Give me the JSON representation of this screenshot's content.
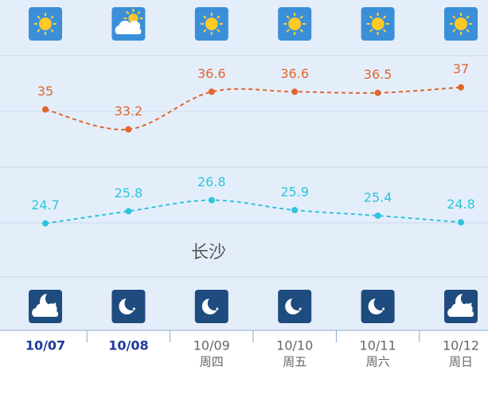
{
  "chart_data": {
    "type": "line",
    "annotation": "长沙",
    "categories": [
      "10/07",
      "10/08",
      "10/09",
      "10/10",
      "10/11",
      "10/12"
    ],
    "weekdays": [
      null,
      null,
      "周四",
      "周五",
      "周六",
      "周日"
    ],
    "series": [
      {
        "name": "high",
        "color": "#e0662e",
        "values": [
          35,
          33.2,
          36.6,
          36.6,
          36.5,
          37
        ]
      },
      {
        "name": "low",
        "color": "#2ec4dc",
        "values": [
          24.7,
          25.8,
          26.8,
          25.9,
          25.4,
          24.8
        ]
      }
    ],
    "ylim": [
      20,
      40
    ]
  }
}
